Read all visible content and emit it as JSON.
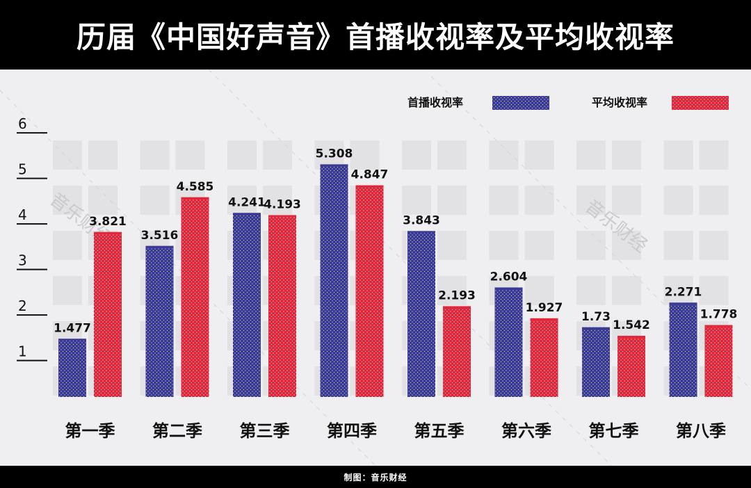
{
  "header": {
    "title": "历届《中国好声音》首播收视率及平均收视率"
  },
  "footer": {
    "credit": "制图：音乐财经"
  },
  "watermark": {
    "text": "音乐财经"
  },
  "colors": {
    "premiere": "#3a3b94",
    "average": "#e0283d",
    "background": "#efeff1",
    "cell": "#e2e2e4"
  },
  "chart_data": {
    "type": "bar",
    "title": "历届《中国好声音》首播收视率及平均收视率",
    "categories": [
      "第一季",
      "第二季",
      "第三季",
      "第四季",
      "第五季",
      "第六季",
      "第七季",
      "第八季"
    ],
    "series": [
      {
        "name": "首播收视率",
        "values": [
          1.477,
          3.516,
          4.241,
          5.308,
          3.843,
          2.604,
          1.73,
          2.271
        ],
        "labels": [
          "1.477",
          "3.516",
          "4.241",
          "5.308",
          "3.843",
          "2.604",
          "1.73",
          "2.271"
        ]
      },
      {
        "name": "平均收视率",
        "values": [
          3.821,
          4.585,
          4.193,
          4.847,
          2.193,
          1.927,
          1.542,
          1.778
        ],
        "labels": [
          "3.821",
          "4.585",
          "4.193",
          "4.847",
          "2.193",
          "1.927",
          "1.542",
          "1.778"
        ]
      }
    ],
    "yticks": [
      1,
      2,
      3,
      4,
      5,
      6
    ],
    "ylim": [
      0.2,
      6
    ],
    "legend": "top-right"
  }
}
